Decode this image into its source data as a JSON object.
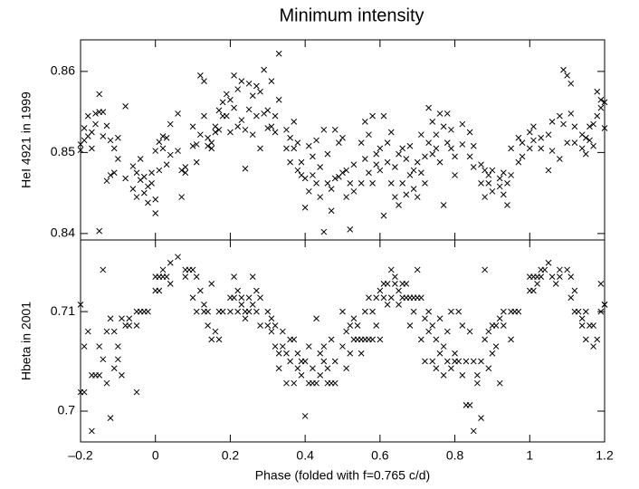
{
  "chart_data": [
    {
      "type": "scatter",
      "title": "Minimum intensity",
      "ylabel": "HeI 4921 in 1999",
      "color": "#000000",
      "marker": "x",
      "xlim": [
        -0.2,
        1.2
      ],
      "xticks": [
        -0.2,
        0,
        0.2,
        0.4,
        0.6,
        0.8,
        1,
        1.2
      ],
      "ylim": [
        0.8392,
        0.8639
      ],
      "yticks": [
        0.84,
        0.85,
        0.86
      ],
      "x": [
        -0.2,
        -0.2,
        -0.19,
        -0.19,
        -0.18,
        -0.18,
        -0.17,
        -0.17,
        -0.16,
        -0.16,
        -0.15,
        -0.15,
        -0.15,
        -0.14,
        -0.14,
        -0.13,
        -0.13,
        -0.12,
        -0.12,
        -0.11,
        -0.11,
        -0.1,
        -0.1,
        -0.08,
        -0.08,
        -0.06,
        -0.06,
        -0.05,
        -0.05,
        -0.04,
        -0.04,
        -0.03,
        -0.03,
        -0.02,
        -0.02,
        -0.01,
        -0.01,
        0,
        0,
        0,
        0.01,
        0.01,
        0.02,
        0.02,
        0.03,
        0.03,
        0.04,
        0.04,
        0.06,
        0.06,
        0.07,
        0.07,
        0.08,
        0.08,
        0.1,
        0.1,
        0.11,
        0.11,
        0.12,
        0.12,
        0.13,
        0.13,
        0.14,
        0.14,
        0.15,
        0.15,
        0.16,
        0.16,
        0.17,
        0.17,
        0.18,
        0.18,
        0.19,
        0.19,
        0.2,
        0.2,
        0.21,
        0.21,
        0.22,
        0.22,
        0.23,
        0.23,
        0.24,
        0.24,
        0.25,
        0.25,
        0.26,
        0.26,
        0.27,
        0.27,
        0.28,
        0.28,
        0.29,
        0.29,
        0.3,
        0.3,
        0.31,
        0.31,
        0.32,
        0.32,
        0.33,
        0.33,
        0.35,
        0.35,
        0.36,
        0.36,
        0.37,
        0.37,
        0.38,
        0.38,
        0.39,
        0.39,
        0.4,
        0.4,
        0.41,
        0.41,
        0.42,
        0.42,
        0.43,
        0.43,
        0.44,
        0.44,
        0.45,
        0.45,
        0.46,
        0.46,
        0.47,
        0.47,
        0.48,
        0.48,
        0.49,
        0.49,
        0.5,
        0.5,
        0.51,
        0.51,
        0.52,
        0.52,
        0.53,
        0.53,
        0.55,
        0.55,
        0.56,
        0.56,
        0.57,
        0.57,
        0.58,
        0.58,
        0.59,
        0.59,
        0.6,
        0.6,
        0.61,
        0.61,
        0.62,
        0.62,
        0.63,
        0.63,
        0.64,
        0.64,
        0.65,
        0.65,
        0.66,
        0.66,
        0.67,
        0.67,
        0.68,
        0.68,
        0.69,
        0.69,
        0.7,
        0.7,
        0.71,
        0.71,
        0.72,
        0.72,
        0.73,
        0.73,
        0.74,
        0.74,
        0.75,
        0.75,
        0.76,
        0.76,
        0.77,
        0.77,
        0.78,
        0.78,
        0.79,
        0.79,
        0.8,
        0.8,
        0.82,
        0.82,
        0.84,
        0.84,
        0.85,
        0.85,
        0.87,
        0.87,
        0.88,
        0.88,
        0.89,
        0.89,
        0.9,
        0.9,
        0.92,
        0.92,
        0.93,
        0.93,
        0.94,
        0.94,
        0.95,
        0.95,
        0.97,
        0.97,
        0.98,
        0.98,
        1.0,
        1.0,
        1.01,
        1.01,
        1.03,
        1.03,
        1.05,
        1.05,
        1.06,
        1.06,
        1.08,
        1.08,
        1.09,
        1.09,
        1.1,
        1.1,
        1.11,
        1.11,
        1.12,
        1.12,
        1.14,
        1.14,
        1.15,
        1.15,
        1.16,
        1.16,
        1.17,
        1.17,
        1.18,
        1.18,
        1.19,
        1.19,
        1.2,
        1.2
      ],
      "values": [
        0.8503,
        0.851,
        0.853,
        0.8515,
        0.8545,
        0.852,
        0.8525,
        0.8505,
        0.8548,
        0.8535,
        0.8572,
        0.855,
        0.8403,
        0.855,
        0.852,
        0.8533,
        0.8465,
        0.8472,
        0.8515,
        0.8505,
        0.8475,
        0.8492,
        0.8518,
        0.8557,
        0.8468,
        0.8455,
        0.8483,
        0.8475,
        0.8445,
        0.8492,
        0.8466,
        0.847,
        0.845,
        0.8458,
        0.8438,
        0.8462,
        0.8475,
        0.8502,
        0.8442,
        0.8425,
        0.8513,
        0.8478,
        0.852,
        0.8505,
        0.8518,
        0.8485,
        0.8535,
        0.8497,
        0.8548,
        0.8502,
        0.8445,
        0.8478,
        0.8482,
        0.8475,
        0.8532,
        0.8508,
        0.851,
        0.8488,
        0.8595,
        0.8522,
        0.8588,
        0.8545,
        0.8518,
        0.8508,
        0.8505,
        0.8512,
        0.8532,
        0.8525,
        0.8528,
        0.8552,
        0.8562,
        0.8545,
        0.8545,
        0.8572,
        0.8565,
        0.8525,
        0.8595,
        0.8555,
        0.8578,
        0.8532,
        0.8588,
        0.854,
        0.848,
        0.8528,
        0.8585,
        0.8553,
        0.857,
        0.8522,
        0.8582,
        0.8545,
        0.8575,
        0.8505,
        0.8602,
        0.8548,
        0.8552,
        0.853,
        0.8588,
        0.8532,
        0.8545,
        0.8525,
        0.8622,
        0.8565,
        0.8505,
        0.8528,
        0.8518,
        0.8488,
        0.8505,
        0.8538,
        0.8478,
        0.8512,
        0.8488,
        0.8472,
        0.8468,
        0.8432,
        0.8508,
        0.8452,
        0.8472,
        0.8495,
        0.8462,
        0.8515,
        0.8445,
        0.8482,
        0.8528,
        0.8402,
        0.8498,
        0.8462,
        0.8455,
        0.8428,
        0.8468,
        0.8528,
        0.8512,
        0.847,
        0.8475,
        0.8518,
        0.8445,
        0.8478,
        0.8405,
        0.8462,
        0.8485,
        0.8452,
        0.8462,
        0.8512,
        0.8538,
        0.8492,
        0.8522,
        0.8475,
        0.8545,
        0.8462,
        0.8498,
        0.8485,
        0.8505,
        0.8478,
        0.8545,
        0.8422,
        0.8488,
        0.8512,
        0.8462,
        0.8525,
        0.8482,
        0.8445,
        0.8435,
        0.8498,
        0.8462,
        0.8505,
        0.8492,
        0.8448,
        0.8508,
        0.8472,
        0.8478,
        0.8455,
        0.8445,
        0.8488,
        0.8522,
        0.8475,
        0.8495,
        0.8462,
        0.8555,
        0.8512,
        0.8538,
        0.8498,
        0.8522,
        0.8505,
        0.8548,
        0.8488,
        0.8532,
        0.8435,
        0.8512,
        0.8548,
        0.8528,
        0.8505,
        0.8495,
        0.8472,
        0.8535,
        0.851,
        0.8525,
        0.8495,
        0.8508,
        0.8482,
        0.8462,
        0.8485,
        0.8478,
        0.8445,
        0.8462,
        0.8472,
        0.8452,
        0.8478,
        0.8468,
        0.8458,
        0.8448,
        0.8475,
        0.8435,
        0.8462,
        0.8472,
        0.8505,
        0.8488,
        0.8518,
        0.8512,
        0.8495,
        0.8505,
        0.8525,
        0.8515,
        0.8532,
        0.8518,
        0.8505,
        0.8522,
        0.8478,
        0.8538,
        0.8502,
        0.8545,
        0.8492,
        0.8602,
        0.8535,
        0.8595,
        0.8512,
        0.8585,
        0.8548,
        0.8532,
        0.8512,
        0.8522,
        0.8505,
        0.8498,
        0.8518,
        0.8515,
        0.8532,
        0.8508,
        0.8535,
        0.8545,
        0.8575,
        0.8565,
        0.8555,
        0.8562,
        0.853
      ]
    },
    {
      "type": "scatter",
      "ylabel": "Hbeta in 2001",
      "xlabel": "Phase (folded with f=0.765 c/d)",
      "color": "#000000",
      "marker": "x",
      "xlim": [
        -0.2,
        1.2
      ],
      "xticks": [
        {
          "value": -0.2,
          "label": "–0.2"
        },
        0,
        0.2,
        0.4,
        0.6,
        0.8,
        1,
        1.2
      ],
      "ylim": [
        0.6969,
        0.7172
      ],
      "yticks": [
        0.7,
        0.71
      ],
      "x": [
        -0.2,
        -0.2,
        -0.19,
        -0.19,
        -0.18,
        -0.17,
        -0.17,
        -0.16,
        -0.15,
        -0.15,
        -0.14,
        -0.14,
        -0.13,
        -0.13,
        -0.12,
        -0.12,
        -0.11,
        -0.11,
        -0.1,
        -0.1,
        -0.09,
        -0.09,
        -0.08,
        -0.07,
        -0.07,
        -0.05,
        -0.05,
        -0.05,
        -0.04,
        -0.03,
        -0.02,
        0,
        0,
        0.01,
        0.01,
        0.02,
        0.02,
        0.03,
        0.04,
        0.04,
        0.06,
        0.08,
        0.08,
        0.09,
        0.1,
        0.1,
        0.11,
        0.11,
        0.12,
        0.13,
        0.13,
        0.14,
        0.14,
        0.15,
        0.15,
        0.16,
        0.17,
        0.17,
        0.18,
        0.2,
        0.2,
        0.21,
        0.21,
        0.22,
        0.22,
        0.23,
        0.23,
        0.24,
        0.24,
        0.25,
        0.25,
        0.26,
        0.26,
        0.27,
        0.27,
        0.28,
        0.28,
        0.3,
        0.3,
        0.31,
        0.31,
        0.32,
        0.32,
        0.33,
        0.33,
        0.34,
        0.34,
        0.35,
        0.35,
        0.36,
        0.36,
        0.37,
        0.37,
        0.38,
        0.38,
        0.39,
        0.39,
        0.4,
        0.4,
        0.41,
        0.41,
        0.42,
        0.42,
        0.43,
        0.43,
        0.44,
        0.44,
        0.45,
        0.45,
        0.46,
        0.46,
        0.47,
        0.47,
        0.48,
        0.48,
        0.5,
        0.5,
        0.51,
        0.51,
        0.52,
        0.52,
        0.53,
        0.53,
        0.54,
        0.54,
        0.55,
        0.55,
        0.56,
        0.56,
        0.57,
        0.57,
        0.58,
        0.58,
        0.59,
        0.59,
        0.6,
        0.6,
        0.61,
        0.61,
        0.62,
        0.62,
        0.63,
        0.63,
        0.64,
        0.64,
        0.65,
        0.65,
        0.66,
        0.66,
        0.67,
        0.67,
        0.68,
        0.68,
        0.69,
        0.69,
        0.7,
        0.7,
        0.71,
        0.71,
        0.72,
        0.72,
        0.73,
        0.73,
        0.74,
        0.74,
        0.75,
        0.75,
        0.76,
        0.76,
        0.77,
        0.77,
        0.78,
        0.78,
        0.79,
        0.79,
        0.8,
        0.8,
        0.81,
        0.81,
        0.82,
        0.82,
        0.83,
        0.83,
        0.84,
        0.84,
        0.85,
        0.85,
        0.86,
        0.86,
        0.87,
        0.87,
        0.88,
        0.88,
        0.89,
        0.89,
        0.9,
        0.9,
        0.91,
        0.91,
        0.92,
        0.92,
        0.93,
        0.93,
        0.95,
        0.95,
        0.96,
        0.97,
        1.0,
        1.0,
        1.01,
        1.01,
        1.02,
        1.02,
        1.03,
        1.03,
        1.04,
        1.05,
        1.06,
        1.07,
        1.08,
        1.08,
        1.1,
        1.11,
        1.11,
        1.12,
        1.12,
        1.13,
        1.14,
        1.14,
        1.15,
        1.15,
        1.16,
        1.17,
        1.17,
        1.18,
        1.19,
        1.19,
        1.2,
        1.2
      ],
      "values": [
        0.7107,
        0.7019,
        0.7065,
        0.7019,
        0.708,
        0.7036,
        0.698,
        0.7036,
        0.7065,
        0.7036,
        0.7142,
        0.7052,
        0.708,
        0.7028,
        0.7093,
        0.6993,
        0.708,
        0.7043,
        0.7065,
        0.7052,
        0.7093,
        0.7036,
        0.7086,
        0.7086,
        0.7093,
        0.7086,
        0.71,
        0.7019,
        0.71,
        0.71,
        0.71,
        0.7121,
        0.7135,
        0.7135,
        0.7121,
        0.7135,
        0.7142,
        0.7135,
        0.7149,
        0.7128,
        0.7155,
        0.7142,
        0.7135,
        0.7142,
        0.7142,
        0.7114,
        0.71,
        0.7135,
        0.7121,
        0.7107,
        0.71,
        0.71,
        0.7086,
        0.7128,
        0.7072,
        0.708,
        0.71,
        0.7072,
        0.71,
        0.7114,
        0.71,
        0.7135,
        0.7114,
        0.7121,
        0.71,
        0.7107,
        0.7114,
        0.71,
        0.7093,
        0.7114,
        0.71,
        0.7135,
        0.7107,
        0.7121,
        0.71,
        0.7114,
        0.7086,
        0.71,
        0.7086,
        0.708,
        0.7093,
        0.7086,
        0.7065,
        0.7058,
        0.7043,
        0.708,
        0.7065,
        0.7058,
        0.7028,
        0.705,
        0.7072,
        0.7072,
        0.7028,
        0.7058,
        0.7043,
        0.705,
        0.7036,
        0.6995,
        0.705,
        0.7065,
        0.7028,
        0.7028,
        0.7043,
        0.7028,
        0.7093,
        0.7036,
        0.7058,
        0.705,
        0.7065,
        0.7043,
        0.7028,
        0.7028,
        0.7072,
        0.7028,
        0.705,
        0.7065,
        0.71,
        0.7043,
        0.708,
        0.7058,
        0.7086,
        0.7072,
        0.7093,
        0.7072,
        0.7086,
        0.7072,
        0.7058,
        0.71,
        0.7072,
        0.7114,
        0.7072,
        0.71,
        0.7072,
        0.7114,
        0.7086,
        0.7072,
        0.7121,
        0.7128,
        0.7114,
        0.7128,
        0.7107,
        0.7142,
        0.7114,
        0.7135,
        0.7128,
        0.7107,
        0.7121,
        0.7114,
        0.7128,
        0.7128,
        0.7114,
        0.7114,
        0.7086,
        0.7114,
        0.71,
        0.7142,
        0.7114,
        0.7114,
        0.7072,
        0.7093,
        0.705,
        0.71,
        0.708,
        0.705,
        0.7086,
        0.7043,
        0.7072,
        0.7058,
        0.7093,
        0.7065,
        0.7036,
        0.708,
        0.705,
        0.7043,
        0.71,
        0.705,
        0.7058,
        0.705,
        0.71,
        0.7036,
        0.7086,
        0.7006,
        0.705,
        0.7006,
        0.708,
        0.705,
        0.698,
        0.7028,
        0.7036,
        0.6993,
        0.705,
        0.7072,
        0.7142,
        0.7043,
        0.708,
        0.7058,
        0.7086,
        0.7086,
        0.7065,
        0.7093,
        0.7028,
        0.7086,
        0.71,
        0.71,
        0.7072,
        0.71,
        0.71,
        0.7121,
        0.7135,
        0.7121,
        0.7135,
        0.7135,
        0.7128,
        0.7142,
        0.7135,
        0.7142,
        0.7149,
        0.7135,
        0.7128,
        0.7142,
        0.7135,
        0.7142,
        0.7135,
        0.7114,
        0.71,
        0.7121,
        0.71,
        0.7093,
        0.7086,
        0.7072,
        0.71,
        0.7086,
        0.7086,
        0.7065,
        0.7072,
        0.7128,
        0.71,
        0.7107,
        0.7107
      ]
    }
  ]
}
